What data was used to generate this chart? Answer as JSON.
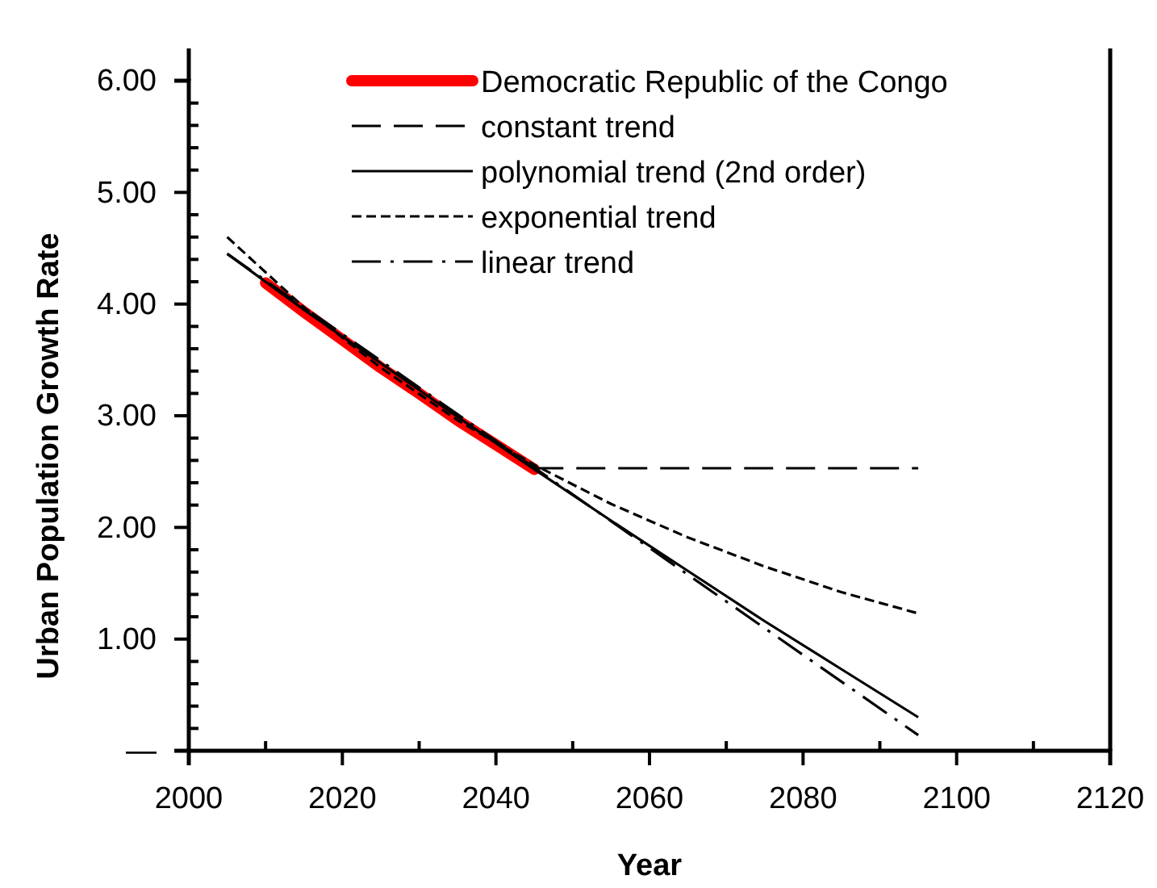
{
  "chart_data": {
    "type": "line",
    "xlabel": "Year",
    "ylabel": "Urban Population Growth Rate",
    "xlim": [
      2000,
      2120
    ],
    "xticks": [
      2000,
      {
        "value": 2010,
        "label": null
      },
      2020,
      {
        "value": 2030,
        "label": null
      },
      2040,
      {
        "value": 2050,
        "label": null
      },
      2060,
      {
        "value": 2070,
        "label": null
      },
      2080,
      {
        "value": 2090,
        "label": null
      },
      2100,
      {
        "value": 2110,
        "label": null
      },
      2120
    ],
    "ylim": [
      0,
      6
    ],
    "yticks": [
      {
        "value": 0,
        "label": "—"
      },
      {
        "value": 0.2,
        "label": null
      },
      {
        "value": 0.4,
        "label": null
      },
      {
        "value": 0.6,
        "label": null
      },
      {
        "value": 0.8,
        "label": null
      },
      {
        "value": 1,
        "label": "1.00"
      },
      {
        "value": 1.2,
        "label": null
      },
      {
        "value": 1.4,
        "label": null
      },
      {
        "value": 1.6,
        "label": null
      },
      {
        "value": 1.8,
        "label": null
      },
      {
        "value": 2,
        "label": "2.00"
      },
      {
        "value": 2.2,
        "label": null
      },
      {
        "value": 2.4,
        "label": null
      },
      {
        "value": 2.6,
        "label": null
      },
      {
        "value": 2.8,
        "label": null
      },
      {
        "value": 3,
        "label": "3.00"
      },
      {
        "value": 3.2,
        "label": null
      },
      {
        "value": 3.4,
        "label": null
      },
      {
        "value": 3.6,
        "label": null
      },
      {
        "value": 3.8,
        "label": null
      },
      {
        "value": 4,
        "label": "4.00"
      },
      {
        "value": 4.2,
        "label": null
      },
      {
        "value": 4.4,
        "label": null
      },
      {
        "value": 4.6,
        "label": null
      },
      {
        "value": 4.8,
        "label": null
      },
      {
        "value": 5,
        "label": "5.00"
      },
      {
        "value": 5.2,
        "label": null
      },
      {
        "value": 5.4,
        "label": null
      },
      {
        "value": 5.6,
        "label": null
      },
      {
        "value": 5.8,
        "label": null
      },
      {
        "value": 6,
        "label": "6.00"
      }
    ],
    "grid": false,
    "legend": "top right",
    "marker": "none",
    "series": [
      {
        "name": "Democratic Republic of the Congo",
        "color": "#ff0000",
        "line_style": "solid",
        "x": [
          2010,
          2015,
          2020,
          2025,
          2030,
          2035,
          2040,
          2045
        ],
        "values": [
          4.19,
          3.93,
          3.68,
          3.43,
          3.2,
          2.96,
          2.74,
          2.52
        ]
      },
      {
        "name": "constant trend",
        "color": "#000000",
        "line_style": "dashed",
        "x": [
          2045,
          2095
        ],
        "values": [
          2.53,
          2.53
        ]
      },
      {
        "name": "polynomial trend (2nd order)",
        "color": "#000000",
        "line_style": "solid",
        "x": [
          2005,
          2015,
          2025,
          2035,
          2045,
          2055,
          2065,
          2075,
          2085,
          2095
        ],
        "values": [
          4.45,
          3.95,
          3.47,
          2.99,
          2.52,
          2.06,
          1.61,
          1.16,
          0.73,
          0.3
        ]
      },
      {
        "name": "exponential trend",
        "color": "#000000",
        "line_style": "dotted",
        "x": [
          2005,
          2015,
          2025,
          2035,
          2045,
          2055,
          2065,
          2075,
          2085,
          2095
        ],
        "values": [
          4.6,
          3.97,
          3.43,
          2.96,
          2.56,
          2.21,
          1.91,
          1.65,
          1.42,
          1.23
        ]
      },
      {
        "name": "linear trend",
        "color": "#000000",
        "line_style": "dashdot",
        "x": [
          2005,
          2095
        ],
        "values": [
          4.45,
          0.14
        ]
      }
    ]
  }
}
